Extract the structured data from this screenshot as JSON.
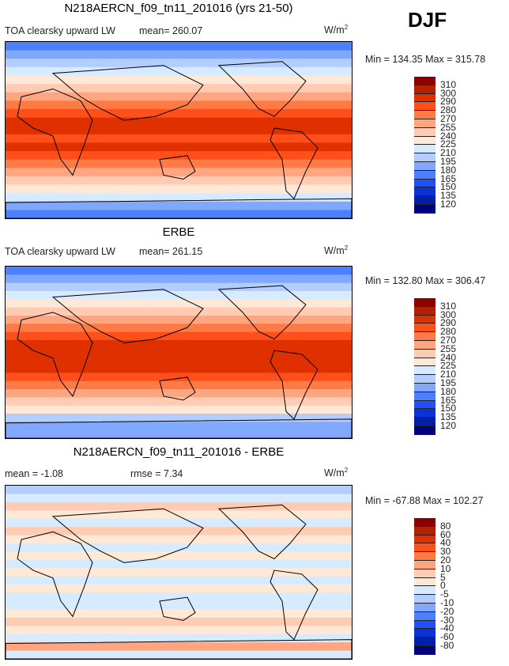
{
  "season": "DJF",
  "units": "W/m",
  "units_exp": "2",
  "colors": [
    "#000080",
    "#0020aa",
    "#0a32d6",
    "#1f50ff",
    "#4d80ff",
    "#80a8ff",
    "#b3cdff",
    "#d6ebff",
    "#ffe8d6",
    "#ffcbb3",
    "#ffa680",
    "#ff7a45",
    "#ff4f1a",
    "#e03000",
    "#b22200",
    "#8b0000"
  ],
  "chart_data": [
    {
      "type": "heatmap",
      "title": "N218AERCN_f09_tn11_201016 (yrs 21-50)",
      "subtitle": "TOA clearsky upward LW",
      "mean_label": "mean= 260.07",
      "minmax": "Min = 134.35 Max = 315.78",
      "levels": [
        "310",
        "300",
        "290",
        "280",
        "270",
        "255",
        "240",
        "225",
        "210",
        "195",
        "180",
        "165",
        "150",
        "135",
        "120"
      ],
      "zonal_profile_n_to_s": [
        165,
        180,
        195,
        210,
        225,
        240,
        255,
        270,
        280,
        290,
        290,
        280,
        290,
        280,
        270,
        255,
        240,
        225,
        210,
        180,
        165
      ]
    },
    {
      "type": "heatmap",
      "title": "ERBE",
      "subtitle": "TOA clearsky upward LW",
      "mean_label": "mean= 261.15",
      "minmax": "Min = 132.80 Max = 306.47",
      "levels": [
        "310",
        "300",
        "290",
        "280",
        "270",
        "255",
        "240",
        "225",
        "210",
        "195",
        "180",
        "165",
        "150",
        "135",
        "120"
      ],
      "zonal_profile_n_to_s": [
        165,
        180,
        195,
        210,
        225,
        240,
        255,
        270,
        280,
        290,
        290,
        290,
        290,
        280,
        270,
        255,
        240,
        225,
        195,
        180,
        180
      ]
    },
    {
      "type": "heatmap",
      "title": "N218AERCN_f09_tn11_201016 - ERBE",
      "mean_label": "mean =  -1.08",
      "rmse_label": "rmse =   7.34",
      "minmax": "Min = -67.88 Max = 102.27",
      "levels": [
        "80",
        "60",
        "40",
        "30",
        "20",
        "10",
        "5",
        "0",
        "-5",
        "-10",
        "-20",
        "-30",
        "-40",
        "-60",
        "-80"
      ],
      "zonal_profile_n_to_s": [
        -10,
        -5,
        5,
        0,
        -5,
        5,
        0,
        -5,
        0,
        -5,
        0,
        -5,
        0,
        -5,
        -5,
        0,
        5,
        0,
        -5,
        10,
        -5
      ]
    }
  ]
}
